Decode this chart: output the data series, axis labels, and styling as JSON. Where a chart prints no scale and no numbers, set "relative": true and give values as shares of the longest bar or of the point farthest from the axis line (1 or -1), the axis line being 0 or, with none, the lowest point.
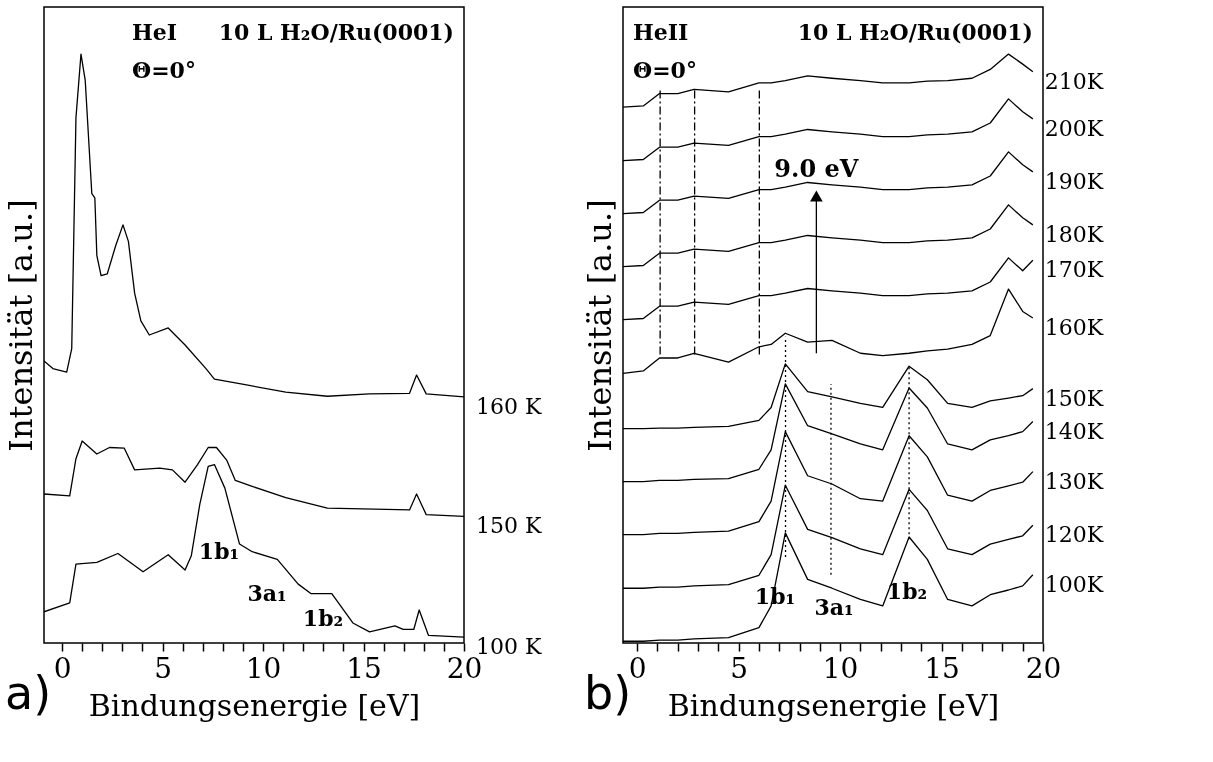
{
  "chart_data": [
    {
      "type": "line",
      "title": "a)",
      "xlabel": "Bindungsenergie [eV]",
      "ylabel": "Intensität [a.u.]",
      "relative": true,
      "xlim": [
        -0.9,
        20
      ],
      "xticks": [
        0,
        {
          "value": 1,
          "label": null
        },
        {
          "value": 2,
          "label": null
        },
        {
          "value": 3,
          "label": null
        },
        {
          "value": 4,
          "label": null
        },
        5,
        {
          "value": 6,
          "label": null
        },
        {
          "value": 7,
          "label": null
        },
        {
          "value": 8,
          "label": null
        },
        {
          "value": 9,
          "label": null
        },
        10,
        {
          "value": 11,
          "label": null
        },
        {
          "value": 12,
          "label": null
        },
        {
          "value": 13,
          "label": null
        },
        {
          "value": 14,
          "label": null
        },
        15,
        {
          "value": 16,
          "label": null
        },
        {
          "value": 17,
          "label": null
        },
        {
          "value": 18,
          "label": null
        },
        {
          "value": 19,
          "label": null
        },
        20
      ],
      "annotations": [
        "HeI",
        "10 L H₂O/Ru(0001)",
        "Θ=0°",
        "1b₁",
        "3a₁",
        "1b₂"
      ],
      "series": [
        {
          "name": "160 K",
          "color": "#000000",
          "x": [
            -0.9,
            -0.46,
            0.23,
            0.48,
            0.69,
            0.94,
            1.15,
            1.48,
            1.63,
            1.73,
            1.94,
            2.25,
            2.67,
            3.03,
            3.3,
            3.61,
            3.92,
            4.34,
            5.28,
            6.12,
            7.16,
            7.58,
            9.04,
            11.13,
            13.2,
            15.3,
            17.29,
            17.64,
            18.12,
            20.0
          ],
          "values": [
            0.479,
            0.466,
            0.46,
            0.5,
            0.892,
            1.0,
            0.956,
            0.763,
            0.756,
            0.658,
            0.624,
            0.627,
            0.675,
            0.71,
            0.682,
            0.594,
            0.547,
            0.523,
            0.535,
            0.506,
            0.466,
            0.448,
            0.439,
            0.426,
            0.419,
            0.423,
            0.424,
            0.455,
            0.423,
            0.418
          ]
        },
        {
          "name": "150 K",
          "color": "#000000",
          "x": [
            -0.9,
            0.38,
            0.69,
            1.0,
            1.73,
            2.36,
            3.09,
            3.61,
            4.86,
            5.49,
            6.12,
            6.74,
            7.27,
            7.68,
            8.2,
            8.62,
            9.46,
            11.13,
            13.2,
            17.29,
            17.64,
            18.12,
            20.0
          ],
          "values": [
            0.253,
            0.25,
            0.313,
            0.343,
            0.321,
            0.332,
            0.331,
            0.294,
            0.297,
            0.294,
            0.273,
            0.303,
            0.332,
            0.332,
            0.31,
            0.276,
            0.266,
            0.247,
            0.229,
            0.226,
            0.253,
            0.218,
            0.215
          ]
        },
        {
          "name": "100 K",
          "color": "#000000",
          "x": [
            -0.9,
            0.38,
            0.69,
            1.73,
            2.78,
            4.03,
            5.28,
            6.12,
            6.43,
            6.85,
            7.27,
            7.58,
            8.1,
            8.83,
            9.46,
            10.71,
            11.75,
            12.38,
            13.42,
            14.47,
            15.3,
            16.56,
            16.97,
            17.5,
            17.77,
            18.23,
            20.0
          ],
          "values": [
            0.053,
            0.068,
            0.134,
            0.137,
            0.152,
            0.121,
            0.15,
            0.124,
            0.148,
            0.235,
            0.3,
            0.303,
            0.263,
            0.168,
            0.155,
            0.142,
            0.1,
            0.084,
            0.084,
            0.034,
            0.019,
            0.029,
            0.023,
            0.023,
            0.056,
            0.013,
            0.01
          ]
        }
      ]
    },
    {
      "type": "line",
      "title": "b)",
      "xlabel": "Bindungsenergie [eV]",
      "ylabel": "Intensität [a.u.]",
      "relative": true,
      "xlim": [
        -0.7,
        20
      ],
      "xticks": [
        0,
        {
          "value": 1,
          "label": null
        },
        {
          "value": 2,
          "label": null
        },
        {
          "value": 3,
          "label": null
        },
        {
          "value": 4,
          "label": null
        },
        5,
        {
          "value": 6,
          "label": null
        },
        {
          "value": 7,
          "label": null
        },
        {
          "value": 8,
          "label": null
        },
        {
          "value": 9,
          "label": null
        },
        10,
        {
          "value": 11,
          "label": null
        },
        {
          "value": 12,
          "label": null
        },
        {
          "value": 13,
          "label": null
        },
        {
          "value": 14,
          "label": null
        },
        15,
        {
          "value": 16,
          "label": null
        },
        {
          "value": 17,
          "label": null
        },
        {
          "value": 18,
          "label": null
        },
        {
          "value": 19,
          "label": null
        },
        20
      ],
      "annotations": [
        "HeII",
        "10 L  H₂O/Ru(0001)",
        "Θ=0°",
        {
          "text": "9.0 eV",
          "x": 8.83,
          "y": 0.759
        },
        "1b₁",
        "3a₁",
        "1b₂"
      ],
      "x": [
        -0.7,
        0.3,
        1.1,
        2.0,
        2.8,
        4.5,
        6.0,
        6.6,
        7.3,
        8.4,
        9.6,
        11.0,
        12.1,
        13.4,
        14.3,
        15.3,
        16.5,
        17.4,
        18.3,
        19.0,
        19.5
      ],
      "series": [
        {
          "name": "210K",
          "color": "#000000",
          "values": [
            0.91,
            0.912,
            0.933,
            0.933,
            0.94,
            0.936,
            0.951,
            0.951,
            0.955,
            0.963,
            0.959,
            0.955,
            0.951,
            0.951,
            0.954,
            0.955,
            0.959,
            0.974,
            1.0,
            0.983,
            0.97
          ]
        },
        {
          "name": "200K",
          "color": "#000000",
          "values": [
            0.819,
            0.821,
            0.842,
            0.842,
            0.849,
            0.845,
            0.86,
            0.86,
            0.864,
            0.872,
            0.868,
            0.864,
            0.86,
            0.86,
            0.863,
            0.864,
            0.868,
            0.883,
            0.924,
            0.902,
            0.89
          ]
        },
        {
          "name": "190K",
          "color": "#000000",
          "values": [
            0.729,
            0.731,
            0.752,
            0.752,
            0.759,
            0.755,
            0.77,
            0.77,
            0.774,
            0.782,
            0.778,
            0.774,
            0.77,
            0.77,
            0.773,
            0.774,
            0.778,
            0.793,
            0.834,
            0.812,
            0.8
          ]
        },
        {
          "name": "180K",
          "color": "#000000",
          "values": [
            0.639,
            0.641,
            0.662,
            0.662,
            0.669,
            0.665,
            0.68,
            0.68,
            0.684,
            0.692,
            0.688,
            0.684,
            0.68,
            0.68,
            0.683,
            0.684,
            0.688,
            0.703,
            0.744,
            0.722,
            0.71
          ]
        },
        {
          "name": "170K",
          "color": "#000000",
          "values": [
            0.549,
            0.551,
            0.572,
            0.572,
            0.579,
            0.575,
            0.59,
            0.59,
            0.594,
            0.602,
            0.598,
            0.594,
            0.59,
            0.59,
            0.593,
            0.594,
            0.598,
            0.613,
            0.654,
            0.632,
            0.65
          ]
        },
        {
          "name": "160K",
          "color": "#000000",
          "values": [
            0.458,
            0.462,
            0.484,
            0.484,
            0.492,
            0.477,
            0.503,
            0.507,
            0.526,
            0.511,
            0.514,
            0.492,
            0.488,
            0.492,
            0.496,
            0.499,
            0.507,
            0.522,
            0.601,
            0.563,
            0.552
          ]
        },
        {
          "name": "150K",
          "color": "#000000",
          "values": [
            0.364,
            0.364,
            0.365,
            0.365,
            0.366,
            0.368,
            0.378,
            0.4,
            0.474,
            0.427,
            0.418,
            0.407,
            0.4,
            0.47,
            0.447,
            0.407,
            0.4,
            0.411,
            0.416,
            0.42,
            0.432
          ]
        },
        {
          "name": "140K",
          "color": "#000000",
          "values": [
            0.274,
            0.274,
            0.276,
            0.276,
            0.278,
            0.279,
            0.295,
            0.328,
            0.44,
            0.369,
            0.355,
            0.338,
            0.328,
            0.433,
            0.399,
            0.338,
            0.328,
            0.345,
            0.352,
            0.359,
            0.376
          ]
        },
        {
          "name": "130K",
          "color": "#000000",
          "values": [
            0.184,
            0.184,
            0.186,
            0.186,
            0.188,
            0.19,
            0.206,
            0.241,
            0.359,
            0.284,
            0.27,
            0.245,
            0.241,
            0.352,
            0.316,
            0.251,
            0.241,
            0.259,
            0.267,
            0.273,
            0.291
          ]
        },
        {
          "name": "120K",
          "color": "#000000",
          "values": [
            0.093,
            0.093,
            0.095,
            0.095,
            0.097,
            0.099,
            0.115,
            0.15,
            0.268,
            0.193,
            0.179,
            0.16,
            0.15,
            0.261,
            0.225,
            0.16,
            0.15,
            0.168,
            0.176,
            0.182,
            0.2
          ]
        },
        {
          "name": "100K",
          "color": "#000000",
          "values": [
            0.003,
            0.003,
            0.005,
            0.005,
            0.007,
            0.009,
            0.026,
            0.063,
            0.187,
            0.108,
            0.093,
            0.074,
            0.063,
            0.18,
            0.142,
            0.074,
            0.063,
            0.082,
            0.09,
            0.097,
            0.116
          ]
        },
        {
          "type": "line",
          "color": "#000000",
          "line_style": "dashed",
          "x": [
            1.13,
            1.13
          ],
          "values": [
            0.49,
            0.94
          ]
        },
        {
          "type": "line",
          "color": "#000000",
          "line_style": "dashed",
          "x": [
            2.83,
            2.83
          ],
          "values": [
            0.49,
            0.94
          ]
        },
        {
          "type": "line",
          "color": "#000000",
          "line_style": "dashed",
          "x": [
            6.02,
            6.02
          ],
          "values": [
            0.49,
            0.94
          ]
        },
        {
          "type": "line",
          "color": "#000000",
          "line_style": "dotted",
          "x": [
            7.31,
            7.31
          ],
          "values": [
            0.146,
            0.52
          ]
        },
        {
          "type": "line",
          "color": "#000000",
          "line_style": "dotted",
          "x": [
            9.55,
            9.55
          ],
          "values": [
            0.116,
            0.44
          ]
        },
        {
          "type": "line",
          "color": "#000000",
          "line_style": "dotted",
          "x": [
            13.4,
            13.4
          ],
          "values": [
            0.176,
            0.473
          ]
        },
        {
          "type": "line",
          "color": "#000000",
          "x": [
            8.83,
            8.83
          ],
          "values": [
            0.492,
            0.759
          ]
        }
      ]
    }
  ]
}
